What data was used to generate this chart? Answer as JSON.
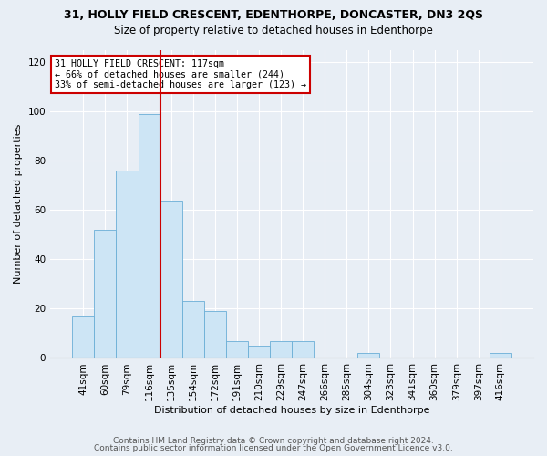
{
  "title1": "31, HOLLY FIELD CRESCENT, EDENTHORPE, DONCASTER, DN3 2QS",
  "title2": "Size of property relative to detached houses in Edenthorpe",
  "xlabel": "Distribution of detached houses by size in Edenthorpe",
  "ylabel": "Number of detached properties",
  "categories": [
    "41sqm",
    "60sqm",
    "79sqm",
    "116sqm",
    "135sqm",
    "154sqm",
    "172sqm",
    "191sqm",
    "210sqm",
    "229sqm",
    "247sqm",
    "266sqm",
    "285sqm",
    "304sqm",
    "323sqm",
    "341sqm",
    "360sqm",
    "379sqm",
    "397sqm",
    "416sqm"
  ],
  "values": [
    17,
    52,
    76,
    99,
    64,
    23,
    19,
    7,
    5,
    7,
    7,
    0,
    0,
    2,
    0,
    0,
    0,
    0,
    0,
    2
  ],
  "bar_color": "#cde5f5",
  "bar_edge_color": "#6aaed6",
  "highlight_index": 3,
  "highlight_color": "#cc0000",
  "annotation_line1": "31 HOLLY FIELD CRESCENT: 117sqm",
  "annotation_line2": "← 66% of detached houses are smaller (244)",
  "annotation_line3": "33% of semi-detached houses are larger (123) →",
  "annotation_box_edge": "#cc0000",
  "ylim": [
    0,
    125
  ],
  "yticks": [
    0,
    20,
    40,
    60,
    80,
    100,
    120
  ],
  "footer1": "Contains HM Land Registry data © Crown copyright and database right 2024.",
  "footer2": "Contains public sector information licensed under the Open Government Licence v3.0.",
  "bg_color": "#e8eef5",
  "plot_bg_color": "#e8eef5",
  "title1_fontsize": 9,
  "title2_fontsize": 8.5,
  "xlabel_fontsize": 8,
  "ylabel_fontsize": 8,
  "tick_fontsize": 7.5,
  "footer_fontsize": 6.5
}
